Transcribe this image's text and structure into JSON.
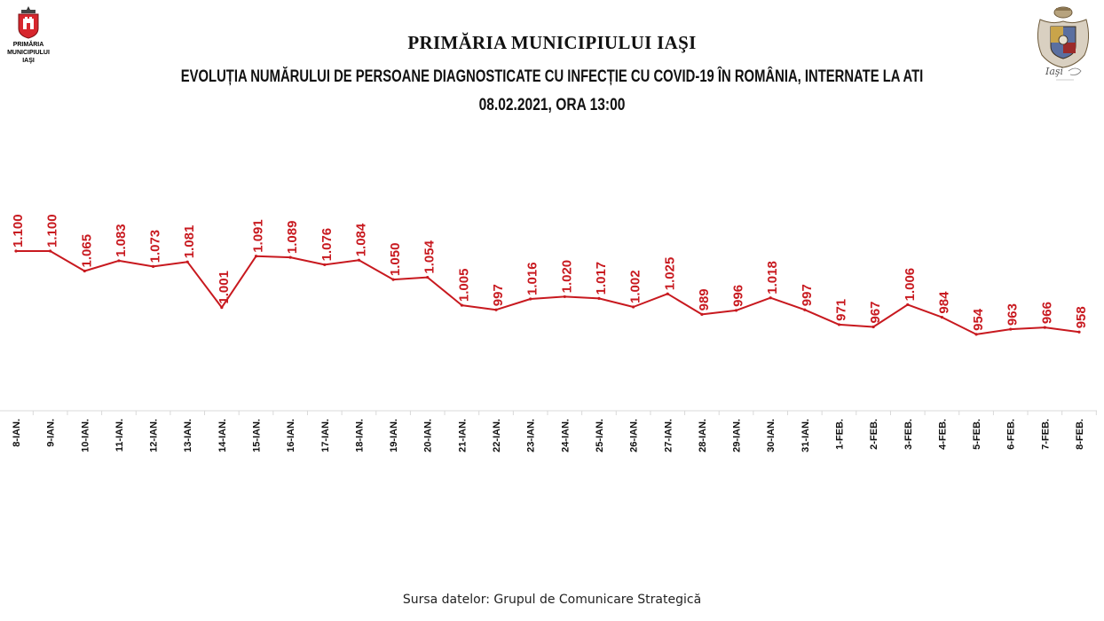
{
  "header": {
    "title": "PRIMĂRIA MUNICIPIULUI IAŞI",
    "logo_left": {
      "icon": "city-crest-icon",
      "line1": "PRIMĂRIA",
      "line2": "MUNICIPIULUI",
      "line3": "IAŞI"
    },
    "logo_right": {
      "icon": "coat-of-arms-icon",
      "text": "Iaşi"
    }
  },
  "footer": {
    "source": "Sursa datelor: Grupul de Comunicare Strategică"
  },
  "colors": {
    "line": "#c8191f",
    "labels": "#c8191f",
    "axis": "#d9d9d9",
    "text": "#111111"
  },
  "chart_data": {
    "type": "line",
    "title": "EVOLUȚIA NUMĂRULUI DE PERSOANE DIAGNOSTICATE CU INFECȚIE CU COVID-19 ÎN ROMÂNIA, INTERNATE LA ATI",
    "subtitle": "08.02.2021, ORA 13:00",
    "categories": [
      "8-IAN.",
      "9-IAN.",
      "10-IAN.",
      "11-IAN.",
      "12-IAN.",
      "13-IAN.",
      "14-IAN.",
      "15-IAN.",
      "16-IAN.",
      "17-IAN.",
      "18-IAN.",
      "19-IAN.",
      "20-IAN.",
      "21-IAN.",
      "22-IAN.",
      "23-IAN.",
      "24-IAN.",
      "25-IAN.",
      "26-IAN.",
      "27-IAN.",
      "28-IAN.",
      "29-IAN.",
      "30-IAN.",
      "31-IAN.",
      "1-FEB.",
      "2-FEB.",
      "3-FEB.",
      "4-FEB.",
      "5-FEB.",
      "6-FEB.",
      "7-FEB.",
      "8-FEB."
    ],
    "values": [
      1100,
      1100,
      1065,
      1083,
      1073,
      1081,
      1001,
      1091,
      1089,
      1076,
      1084,
      1050,
      1054,
      1005,
      997,
      1016,
      1020,
      1017,
      1002,
      1025,
      989,
      996,
      1018,
      997,
      971,
      967,
      1006,
      984,
      954,
      963,
      966,
      958
    ],
    "value_labels": [
      "1.100",
      "1.100",
      "1.065",
      "1.083",
      "1.073",
      "1.081",
      "1.001",
      "1.091",
      "1.089",
      "1.076",
      "1.084",
      "1.050",
      "1.054",
      "1.005",
      "997",
      "1.016",
      "1.020",
      "1.017",
      "1.002",
      "1.025",
      "989",
      "996",
      "1.018",
      "997",
      "971",
      "967",
      "1.006",
      "984",
      "954",
      "963",
      "966",
      "958"
    ],
    "ylim": [
      820,
      1100
    ],
    "grid": false,
    "legend": "none",
    "xlabel": "",
    "ylabel": ""
  }
}
